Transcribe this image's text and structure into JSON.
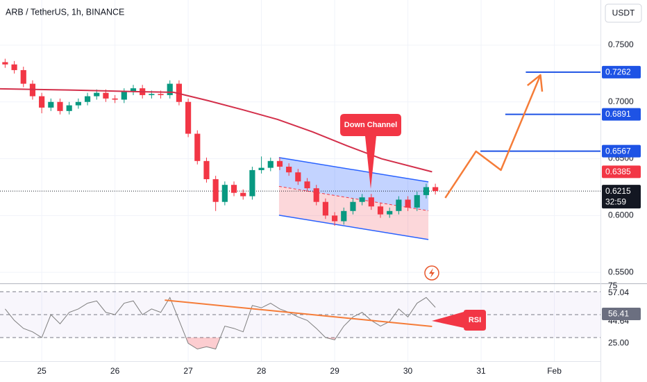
{
  "chart_data": [
    {
      "type": "candlestick",
      "title": "ARB / TetherUS, 1h, BINANCE",
      "currency": "USDT",
      "countdown": "32:59",
      "up_color": "#089981",
      "down_color": "#f23645",
      "grid": true,
      "xlim": [
        24.43,
        32.63
      ],
      "ylim": [
        0.5403,
        0.7897
      ],
      "yticks": [
        {
          "value": 0.75,
          "label": "0.7500"
        },
        {
          "value": 0.7,
          "label": "0.7000"
        },
        {
          "value": 0.65,
          "label": "0.6500"
        },
        {
          "value": 0.6,
          "label": "0.6000"
        },
        {
          "value": 0.55,
          "label": "0.5500"
        }
      ],
      "x": [
        24.5,
        24.625,
        24.75,
        24.875,
        25,
        25.125,
        25.25,
        25.375,
        25.5,
        25.625,
        25.75,
        25.875,
        26,
        26.125,
        26.25,
        26.375,
        26.5,
        26.625,
        26.75,
        26.875,
        27,
        27.125,
        27.25,
        27.375,
        27.5,
        27.625,
        27.75,
        27.875,
        28,
        28.125,
        28.25,
        28.375,
        28.5,
        28.625,
        28.75,
        28.875,
        29,
        29.125,
        29.25,
        29.375,
        29.5,
        29.625,
        29.75,
        29.875,
        30,
        30.125,
        30.25,
        30.375
      ],
      "open": [
        0.735,
        0.733,
        0.728,
        0.716,
        0.705,
        0.695,
        0.7,
        0.692,
        0.697,
        0.7,
        0.705,
        0.708,
        0.703,
        0.702,
        0.709,
        0.712,
        0.706,
        0.707,
        0.706,
        0.716,
        0.7,
        0.672,
        0.648,
        0.632,
        0.612,
        0.627,
        0.62,
        0.617,
        0.64,
        0.642,
        0.648,
        0.643,
        0.638,
        0.63,
        0.624,
        0.612,
        0.6,
        0.595,
        0.604,
        0.612,
        0.616,
        0.608,
        0.601,
        0.604,
        0.614,
        0.607,
        0.618,
        0.625
      ],
      "high": [
        0.738,
        0.736,
        0.731,
        0.719,
        0.708,
        0.703,
        0.703,
        0.7,
        0.703,
        0.708,
        0.711,
        0.711,
        0.706,
        0.712,
        0.715,
        0.715,
        0.71,
        0.71,
        0.719,
        0.719,
        0.703,
        0.675,
        0.651,
        0.635,
        0.63,
        0.63,
        0.623,
        0.643,
        0.652,
        0.651,
        0.651,
        0.646,
        0.641,
        0.633,
        0.627,
        0.615,
        0.603,
        0.607,
        0.615,
        0.619,
        0.619,
        0.611,
        0.607,
        0.617,
        0.617,
        0.621,
        0.628,
        0.628
      ],
      "low": [
        0.73,
        0.725,
        0.713,
        0.702,
        0.69,
        0.692,
        0.689,
        0.689,
        0.694,
        0.697,
        0.702,
        0.7,
        0.699,
        0.699,
        0.706,
        0.703,
        0.703,
        0.703,
        0.703,
        0.697,
        0.669,
        0.645,
        0.629,
        0.604,
        0.609,
        0.617,
        0.614,
        0.614,
        0.637,
        0.639,
        0.64,
        0.635,
        0.627,
        0.621,
        0.609,
        0.597,
        0.591,
        0.592,
        0.601,
        0.609,
        0.605,
        0.598,
        0.598,
        0.601,
        0.604,
        0.604,
        0.615,
        0.6185
      ],
      "close": [
        0.733,
        0.728,
        0.716,
        0.705,
        0.695,
        0.7,
        0.692,
        0.697,
        0.7,
        0.705,
        0.708,
        0.703,
        0.702,
        0.709,
        0.712,
        0.706,
        0.707,
        0.706,
        0.716,
        0.7,
        0.672,
        0.648,
        0.632,
        0.612,
        0.627,
        0.62,
        0.617,
        0.64,
        0.642,
        0.648,
        0.643,
        0.638,
        0.63,
        0.624,
        0.612,
        0.6,
        0.595,
        0.604,
        0.612,
        0.616,
        0.608,
        0.601,
        0.604,
        0.614,
        0.607,
        0.618,
        0.625,
        0.6215
      ],
      "ma": {
        "color": "#d32f4a",
        "x": [
          24.43,
          25.38,
          26.32,
          26.8,
          27.28,
          27.75,
          28.22,
          28.7,
          29.17,
          29.64,
          30.33
        ],
        "values": [
          0.7115,
          0.7105,
          0.709,
          0.7085,
          0.701,
          0.693,
          0.6846,
          0.6736,
          0.6614,
          0.65,
          0.6385
        ]
      },
      "channel": {
        "color": "#2962ff",
        "upper": {
          "x": [
            28.24,
            30.28
          ],
          "y": [
            0.651,
            0.6296
          ]
        },
        "lower": {
          "x": [
            28.24,
            30.28
          ],
          "y": [
            0.6003,
            0.5789
          ]
        }
      },
      "projection": {
        "color": "#f57c38",
        "x": [
          30.51,
          30.93,
          31.27,
          31.81
        ],
        "y": [
          0.6155,
          0.6565,
          0.64,
          0.7237
        ]
      },
      "levels": [
        {
          "value": 0.7262,
          "x0": 31.61
        },
        {
          "value": 0.6891,
          "x0": 31.33
        },
        {
          "value": 0.6567,
          "x0": 30.99
        }
      ],
      "level_color": "#1e53e5",
      "annotation": "Down Channel"
    },
    {
      "type": "line",
      "annotation": "RSI",
      "color": "#7e7e7e",
      "ylim": [
        9.4,
        76.1
      ],
      "yticks": [
        75,
        {
          "value": 25,
          "label": "25.00"
        }
      ],
      "bands": [
        70,
        50,
        30
      ],
      "level_labels": [
        57.04,
        44.64
      ],
      "values": [
        55,
        45,
        38,
        35,
        30,
        50,
        42,
        52,
        55,
        60,
        62,
        52,
        50,
        60,
        62,
        50,
        55,
        52,
        65,
        45,
        25,
        20,
        22,
        20,
        40,
        38,
        35,
        58,
        56,
        60,
        55,
        52,
        48,
        45,
        38,
        30,
        28,
        40,
        48,
        52,
        45,
        40,
        44,
        55,
        48,
        60,
        65,
        56.41
      ],
      "trendline": {
        "color": "#f57c38",
        "x": [
          26.68,
          30.33
        ],
        "y": [
          62.7,
          39.7
        ]
      },
      "xticks": [
        25,
        26,
        27,
        28,
        29,
        30,
        31,
        {
          "value": 32,
          "label": "Feb"
        }
      ]
    }
  ]
}
